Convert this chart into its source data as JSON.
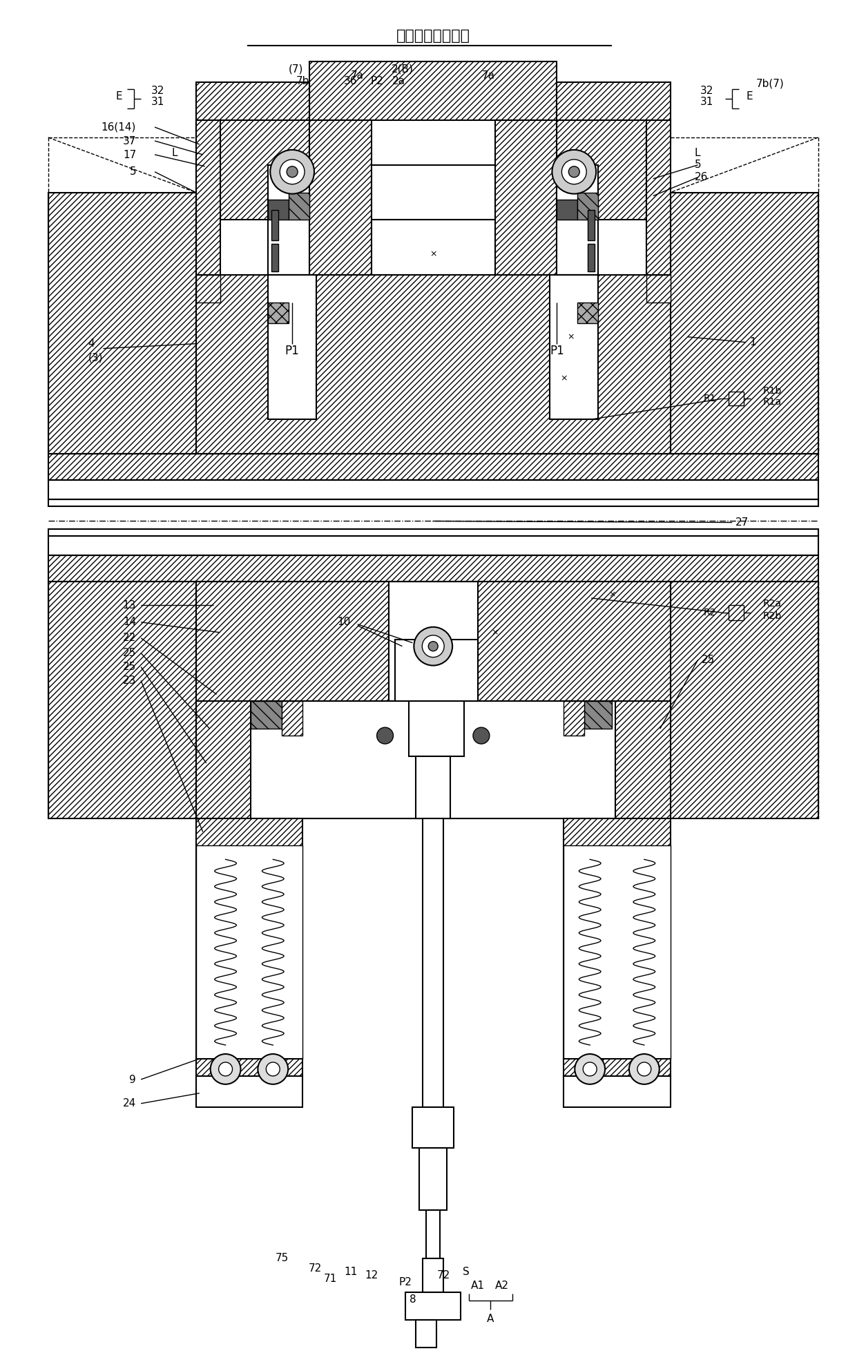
{
  "title": "安装卷芯前的状态",
  "bg_color": "#ffffff",
  "fig_width": 12.4,
  "fig_height": 19.74
}
